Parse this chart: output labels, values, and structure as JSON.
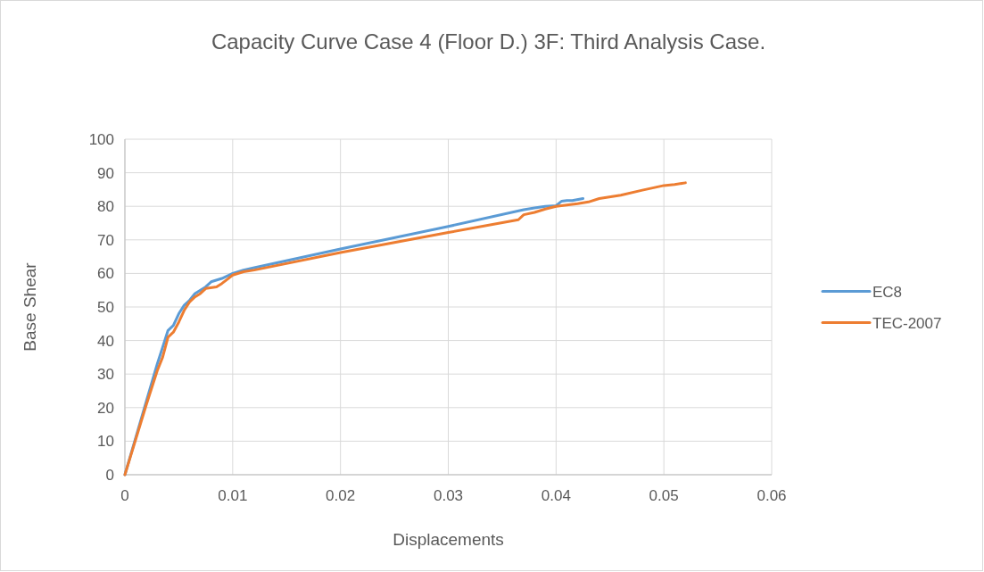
{
  "chart_data": {
    "type": "line",
    "title": "Capacity Curve Case 4 (Floor D.) 3F: Third Analysis Case.",
    "xlabel": "Displacements",
    "ylabel": "Base Shear",
    "xlim": [
      0,
      0.06
    ],
    "xticks": [
      0,
      0.01,
      0.02,
      0.03,
      0.04,
      0.05,
      0.06
    ],
    "ylim": [
      0,
      100
    ],
    "yticks": [
      0,
      10,
      20,
      30,
      40,
      50,
      60,
      70,
      80,
      90,
      100
    ],
    "grid": true,
    "legend": "right",
    "line_style": "solid",
    "marker": "none",
    "series": [
      {
        "name": "EC8",
        "color": "#5b9bd5",
        "x": [
          0,
          0.001,
          0.002,
          0.003,
          0.0035,
          0.004,
          0.0045,
          0.005,
          0.0055,
          0.006,
          0.0065,
          0.007,
          0.0075,
          0.008,
          0.009,
          0.01,
          0.011,
          0.012,
          0.02,
          0.03,
          0.037,
          0.038,
          0.039,
          0.04,
          0.0405,
          0.041,
          0.0415,
          0.0425
        ],
        "values": [
          0,
          11,
          22,
          33,
          38,
          43,
          44.5,
          48,
          50.5,
          52,
          54,
          55,
          56,
          57.5,
          58.5,
          60,
          61,
          61.7,
          67.3,
          74,
          79,
          79.5,
          80,
          80.2,
          81.5,
          81.7,
          81.7,
          82.3
        ]
      },
      {
        "name": "TEC-2007",
        "color": "#ed7d31",
        "x": [
          0,
          0.001,
          0.002,
          0.003,
          0.0035,
          0.004,
          0.0045,
          0.005,
          0.0055,
          0.006,
          0.0065,
          0.007,
          0.0075,
          0.0085,
          0.009,
          0.01,
          0.011,
          0.012,
          0.02,
          0.03,
          0.0365,
          0.037,
          0.038,
          0.039,
          0.04,
          0.042,
          0.043,
          0.044,
          0.046,
          0.048,
          0.05,
          0.051,
          0.052
        ],
        "values": [
          0,
          10.5,
          21,
          31,
          35,
          41,
          42.5,
          45.5,
          49,
          51.5,
          53,
          54,
          55.5,
          56,
          57,
          59.5,
          60.5,
          61,
          66.2,
          72.2,
          76,
          77.5,
          78.2,
          79.2,
          80,
          80.8,
          81.3,
          82.3,
          83.3,
          84.8,
          86.2,
          86.5,
          87
        ]
      }
    ]
  }
}
